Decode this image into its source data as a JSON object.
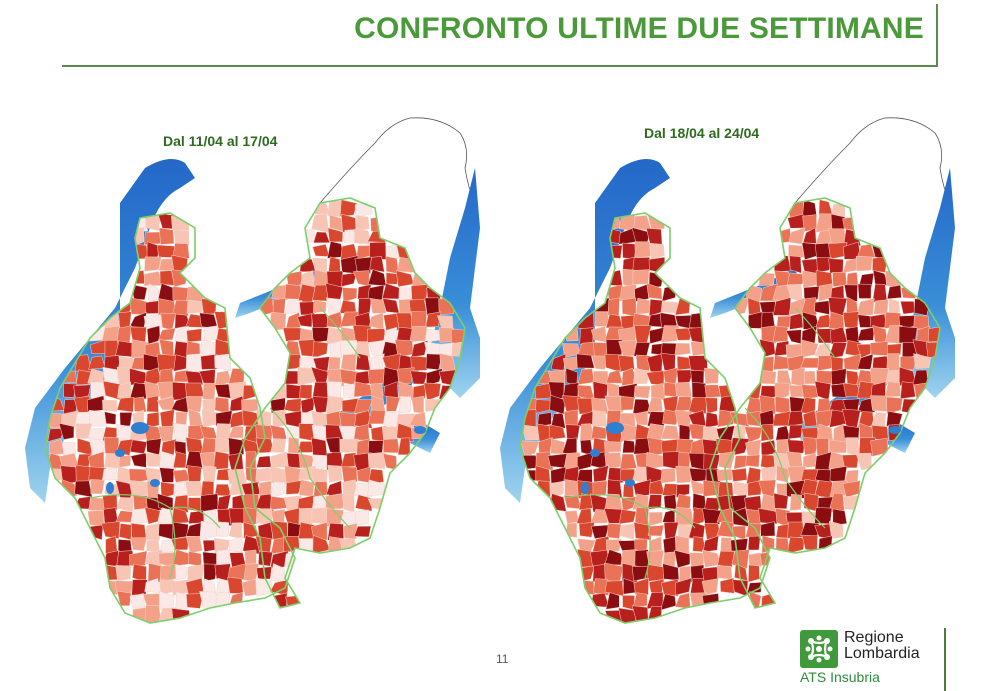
{
  "title": "CONFRONTO ULTIME DUE SETTIMANE",
  "maps": [
    {
      "period_label": "Dal 11/04 al 17/04",
      "intensity": "lower"
    },
    {
      "period_label": "Dal 18/04 al 24/04",
      "intensity": "higher"
    }
  ],
  "page_number": "11",
  "logo": {
    "line1": "Regione",
    "line2": "Lombardia",
    "sub": "ATS Insubria",
    "icon": "regione-lombardia-rosa-camuna-icon"
  },
  "colors": {
    "title": "#4a9a3a",
    "lake": "#3a8fd8",
    "lake_light": "#9fd4ef",
    "border_green": "#7ccf6a",
    "choropleth": [
      "#fbe9e7",
      "#f8c5b4",
      "#f4a189",
      "#ea7256",
      "#d9472f",
      "#b8201d",
      "#8a0d12"
    ]
  }
}
